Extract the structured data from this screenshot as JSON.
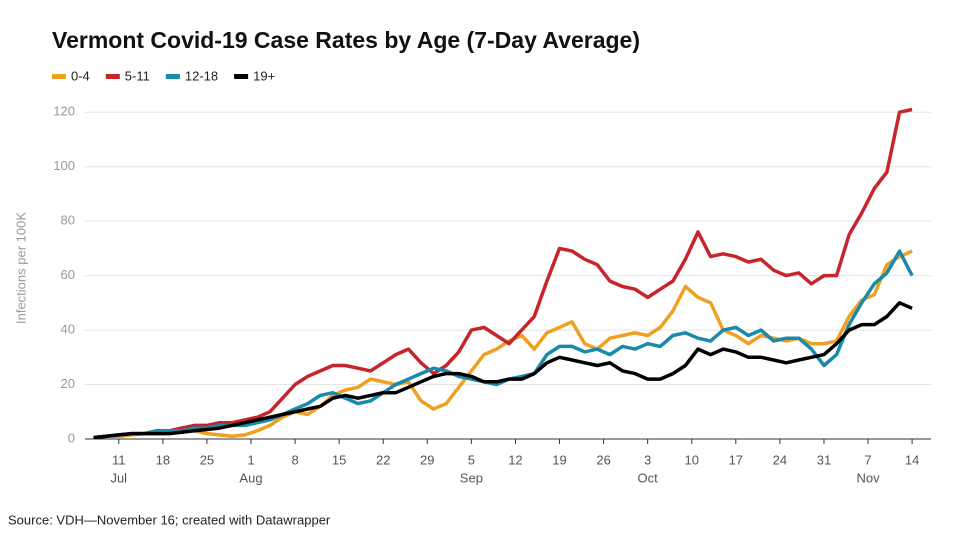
{
  "chart_data": {
    "type": "line",
    "title": "Vermont Covid-19 Case Rates by Age (7-Day Average)",
    "y_label": "Infections per 100K",
    "source": "Source: VDH—November 16; created with Datawrapper",
    "x": [
      "Jul 7",
      "Jul 9",
      "Jul 11",
      "Jul 13",
      "Jul 15",
      "Jul 17",
      "Jul 19",
      "Jul 21",
      "Jul 23",
      "Jul 25",
      "Jul 27",
      "Jul 29",
      "Jul 31",
      "Aug 2",
      "Aug 4",
      "Aug 6",
      "Aug 8",
      "Aug 10",
      "Aug 12",
      "Aug 14",
      "Aug 16",
      "Aug 18",
      "Aug 20",
      "Aug 22",
      "Aug 24",
      "Aug 26",
      "Aug 28",
      "Aug 30",
      "Sep 1",
      "Sep 3",
      "Sep 5",
      "Sep 7",
      "Sep 9",
      "Sep 11",
      "Sep 13",
      "Sep 15",
      "Sep 17",
      "Sep 19",
      "Sep 21",
      "Sep 23",
      "Sep 25",
      "Sep 27",
      "Sep 29",
      "Oct 1",
      "Oct 3",
      "Oct 5",
      "Oct 7",
      "Oct 9",
      "Oct 11",
      "Oct 13",
      "Oct 15",
      "Oct 17",
      "Oct 19",
      "Oct 21",
      "Oct 23",
      "Oct 25",
      "Oct 27",
      "Oct 29",
      "Oct 31",
      "Nov 2",
      "Nov 4",
      "Nov 6",
      "Nov 8",
      "Nov 10",
      "Nov 12",
      "Nov 14"
    ],
    "xlim": [
      "Jul 5",
      "Nov 17"
    ],
    "xticks": [
      {
        "value": "Jul 11",
        "label": "11"
      },
      {
        "value": "Jul 18",
        "label": "18"
      },
      {
        "value": "Jul 25",
        "label": "25"
      },
      {
        "value": "Aug 1",
        "label": "1"
      },
      {
        "value": "Aug 8",
        "label": "8"
      },
      {
        "value": "Aug 15",
        "label": "15"
      },
      {
        "value": "Aug 22",
        "label": "22"
      },
      {
        "value": "Aug 29",
        "label": "29"
      },
      {
        "value": "Sep 5",
        "label": "5"
      },
      {
        "value": "Sep 12",
        "label": "12"
      },
      {
        "value": "Sep 19",
        "label": "19"
      },
      {
        "value": "Sep 26",
        "label": "26"
      },
      {
        "value": "Oct 3",
        "label": "3"
      },
      {
        "value": "Oct 10",
        "label": "10"
      },
      {
        "value": "Oct 17",
        "label": "17"
      },
      {
        "value": "Oct 24",
        "label": "24"
      },
      {
        "value": "Oct 31",
        "label": "31"
      },
      {
        "value": "Nov 7",
        "label": "7"
      },
      {
        "value": "Nov 14",
        "label": "14"
      }
    ],
    "month_labels": [
      {
        "value": "Jul 11",
        "label": "Jul"
      },
      {
        "value": "Aug 1",
        "label": "Aug"
      },
      {
        "value": "Sep 5",
        "label": "Sep"
      },
      {
        "value": "Oct 3",
        "label": "Oct"
      },
      {
        "value": "Nov 7",
        "label": "Nov"
      }
    ],
    "ylim": [
      0,
      130
    ],
    "yticks": [
      0,
      20,
      40,
      60,
      80,
      100,
      120
    ],
    "grid": true,
    "series": [
      {
        "name": "0-4",
        "color": "#f0a020",
        "values": [
          0.5,
          1,
          1,
          1.5,
          2,
          2,
          2.5,
          3,
          3,
          2,
          1.5,
          1,
          1.5,
          3,
          5,
          8,
          10,
          9,
          12,
          16,
          18,
          19,
          22,
          21,
          20,
          21,
          14,
          11,
          13,
          19,
          25,
          31,
          33,
          36,
          38,
          33,
          39,
          41,
          43,
          35,
          33,
          37,
          38,
          39,
          38,
          41,
          47,
          56,
          52,
          50,
          40,
          38,
          35,
          38,
          37,
          36,
          37,
          35,
          35,
          36,
          45,
          51,
          53,
          64,
          67,
          69
        ]
      },
      {
        "name": "5-11",
        "color": "#c8242b",
        "values": [
          0.5,
          1,
          1.5,
          2,
          2,
          3,
          3,
          4,
          5,
          5,
          6,
          6,
          7,
          8,
          10,
          15,
          20,
          23,
          25,
          27,
          27,
          26,
          25,
          28,
          31,
          33,
          28,
          24,
          27,
          32,
          40,
          41,
          38,
          35,
          40,
          45,
          58,
          70,
          69,
          66,
          64,
          58,
          56,
          55,
          52,
          55,
          58,
          66,
          76,
          67,
          68,
          67,
          65,
          66,
          62,
          60,
          61,
          57,
          60,
          60,
          75,
          83,
          92,
          98,
          120,
          121
        ]
      },
      {
        "name": "12-18",
        "color": "#1a8aaa",
        "values": [
          0.5,
          1,
          1.5,
          2,
          2,
          3,
          3,
          3,
          4,
          4,
          5,
          5,
          5,
          6,
          7,
          9,
          11,
          13,
          16,
          17,
          15,
          13,
          14,
          17,
          20,
          22,
          24,
          26,
          25,
          23,
          22,
          21,
          20,
          22,
          23,
          24,
          31,
          34,
          34,
          32,
          33,
          31,
          34,
          33,
          35,
          34,
          38,
          39,
          37,
          36,
          40,
          41,
          38,
          40,
          36,
          37,
          37,
          33,
          27,
          31,
          42,
          50,
          57,
          61,
          69,
          60
        ]
      },
      {
        "name": "19+",
        "color": "#000000",
        "values": [
          0.5,
          1,
          1.5,
          2,
          2,
          2,
          2,
          2.5,
          3,
          3.5,
          4,
          5,
          6,
          7,
          8,
          9,
          10,
          11,
          12,
          15,
          16,
          15,
          16,
          17,
          17,
          19,
          21,
          23,
          24,
          24,
          23,
          21,
          21,
          22,
          22,
          24,
          28,
          30,
          29,
          28,
          27,
          28,
          25,
          24,
          22,
          22,
          24,
          27,
          33,
          31,
          33,
          32,
          30,
          30,
          29,
          28,
          29,
          30,
          31,
          35,
          40,
          42,
          42,
          45,
          50,
          48
        ]
      }
    ]
  }
}
